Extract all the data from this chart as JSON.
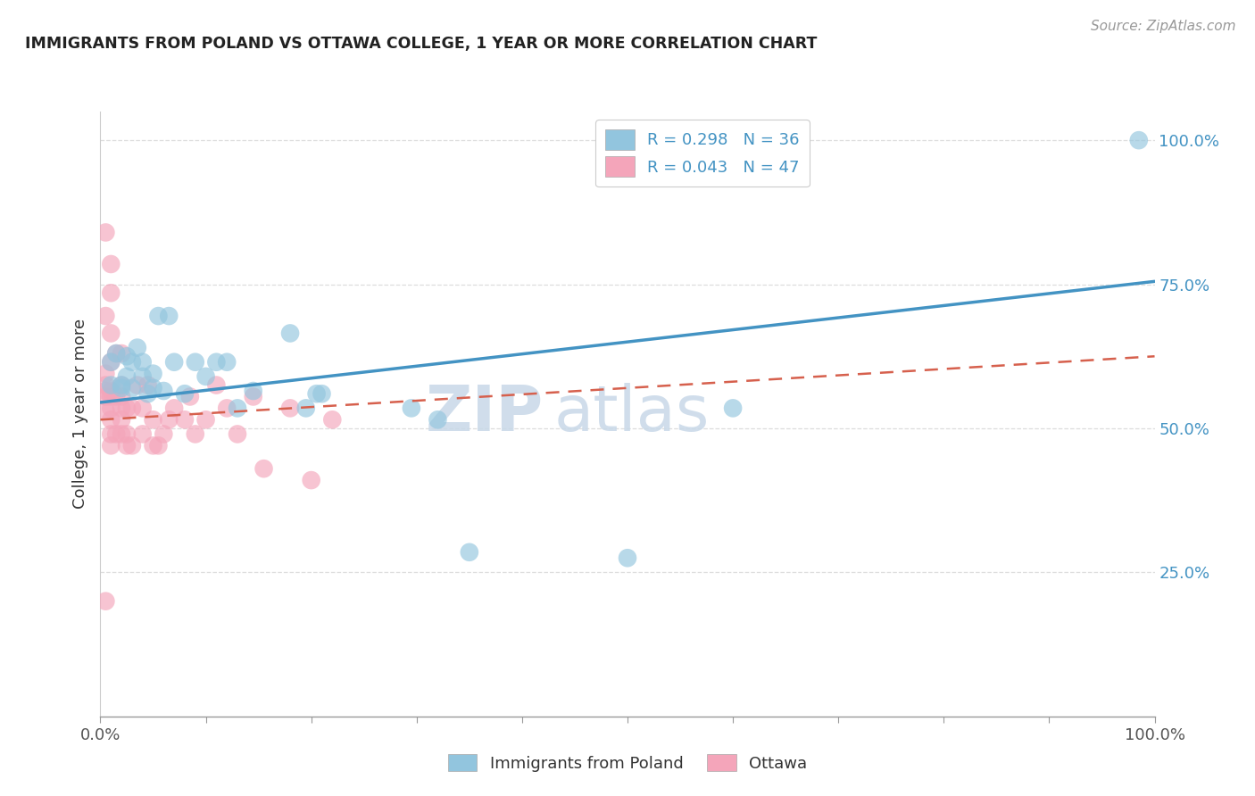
{
  "title": "IMMIGRANTS FROM POLAND VS OTTAWA COLLEGE, 1 YEAR OR MORE CORRELATION CHART",
  "source": "Source: ZipAtlas.com",
  "ylabel": "College, 1 year or more",
  "xlim": [
    0,
    1
  ],
  "ylim": [
    0.0,
    1.05
  ],
  "yticks": [
    0.25,
    0.5,
    0.75,
    1.0
  ],
  "ytick_labels": [
    "25.0%",
    "50.0%",
    "75.0%",
    "100.0%"
  ],
  "xtick_labels": [
    "0.0%",
    "100.0%"
  ],
  "legend_r1": "R = 0.298",
  "legend_n1": "N = 36",
  "legend_r2": "R = 0.043",
  "legend_n2": "N = 47",
  "color_blue": "#92c5de",
  "color_pink": "#f4a5ba",
  "color_blue_line": "#4393c3",
  "color_pink_line": "#d6604d",
  "watermark_zip": "ZIP",
  "watermark_atlas": "atlas",
  "blue_x": [
    0.01,
    0.01,
    0.015,
    0.02,
    0.02,
    0.025,
    0.025,
    0.03,
    0.03,
    0.035,
    0.04,
    0.04,
    0.045,
    0.05,
    0.05,
    0.055,
    0.06,
    0.065,
    0.07,
    0.08,
    0.09,
    0.1,
    0.11,
    0.12,
    0.13,
    0.145,
    0.18,
    0.195,
    0.205,
    0.21,
    0.295,
    0.32,
    0.35,
    0.5,
    0.6,
    0.985
  ],
  "blue_y": [
    0.575,
    0.615,
    0.63,
    0.57,
    0.575,
    0.59,
    0.625,
    0.57,
    0.615,
    0.64,
    0.59,
    0.615,
    0.56,
    0.57,
    0.595,
    0.695,
    0.565,
    0.695,
    0.615,
    0.56,
    0.615,
    0.59,
    0.615,
    0.615,
    0.535,
    0.565,
    0.665,
    0.535,
    0.56,
    0.56,
    0.535,
    0.515,
    0.285,
    0.275,
    0.535,
    1.0
  ],
  "pink_x": [
    0.005,
    0.005,
    0.005,
    0.005,
    0.005,
    0.01,
    0.01,
    0.01,
    0.01,
    0.01,
    0.01,
    0.01,
    0.015,
    0.015,
    0.02,
    0.02,
    0.02,
    0.02,
    0.02,
    0.025,
    0.025,
    0.025,
    0.03,
    0.03,
    0.035,
    0.04,
    0.04,
    0.045,
    0.05,
    0.05,
    0.055,
    0.06,
    0.065,
    0.07,
    0.08,
    0.085,
    0.09,
    0.1,
    0.11,
    0.12,
    0.13,
    0.145,
    0.155,
    0.18,
    0.2,
    0.22,
    0.005
  ],
  "pink_y": [
    0.53,
    0.555,
    0.565,
    0.575,
    0.595,
    0.47,
    0.49,
    0.515,
    0.535,
    0.555,
    0.565,
    0.615,
    0.49,
    0.555,
    0.49,
    0.515,
    0.535,
    0.555,
    0.575,
    0.47,
    0.49,
    0.535,
    0.47,
    0.535,
    0.575,
    0.49,
    0.535,
    0.575,
    0.47,
    0.515,
    0.47,
    0.49,
    0.515,
    0.535,
    0.515,
    0.555,
    0.49,
    0.515,
    0.575,
    0.535,
    0.49,
    0.555,
    0.43,
    0.535,
    0.41,
    0.515,
    0.2
  ],
  "pink_high_x": [
    0.005,
    0.01,
    0.01,
    0.01,
    0.015,
    0.02,
    0.005
  ],
  "pink_high_y": [
    0.84,
    0.785,
    0.735,
    0.665,
    0.63,
    0.63,
    0.695
  ],
  "blue_line_x0": 0.0,
  "blue_line_x1": 1.0,
  "blue_line_y0": 0.545,
  "blue_line_y1": 0.755,
  "pink_line_x0": 0.0,
  "pink_line_x1": 1.0,
  "pink_line_y0": 0.515,
  "pink_line_y1": 0.625
}
